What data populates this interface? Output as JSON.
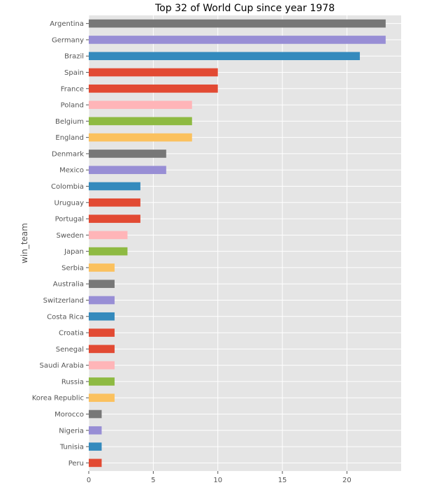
{
  "chart_data": {
    "type": "bar",
    "orientation": "horizontal",
    "title": "Top 32 of World Cup since year 1978",
    "xlabel": "",
    "ylabel": "win_team",
    "xlim": [
      0,
      24.2
    ],
    "xticks": [
      0,
      5,
      10,
      15,
      20
    ],
    "grid": true,
    "categories": [
      "Argentina",
      "Germany",
      "Brazil",
      "Spain",
      "France",
      "Poland",
      "Belgium",
      "England",
      "Denmark",
      "Mexico",
      "Colombia",
      "Uruguay",
      "Portugal",
      "Sweden",
      "Japan",
      "Serbia",
      "Australia",
      "Switzerland",
      "Costa Rica",
      "Croatia",
      "Senegal",
      "Saudi Arabia",
      "Russia",
      "Korea Republic",
      "Morocco",
      "Nigeria",
      "Tunisia",
      "Peru"
    ],
    "values": [
      23,
      23,
      21,
      10,
      10,
      8,
      8,
      8,
      6,
      6,
      4,
      4,
      4,
      3,
      3,
      2,
      2,
      2,
      2,
      2,
      2,
      2,
      2,
      2,
      1,
      1,
      1,
      1
    ],
    "colors": [
      "#777777",
      "#988ED5",
      "#348ABD",
      "#E24A33",
      "#E24A33",
      "#FFB5B8",
      "#8EBA42",
      "#FBC15E",
      "#777777",
      "#988ED5",
      "#348ABD",
      "#E24A33",
      "#E24A33",
      "#FFB5B8",
      "#8EBA42",
      "#FBC15E",
      "#777777",
      "#988ED5",
      "#348ABD",
      "#E24A33",
      "#E24A33",
      "#FFB5B8",
      "#8EBA42",
      "#FBC15E",
      "#777777",
      "#988ED5",
      "#348ABD",
      "#E24A33"
    ]
  }
}
